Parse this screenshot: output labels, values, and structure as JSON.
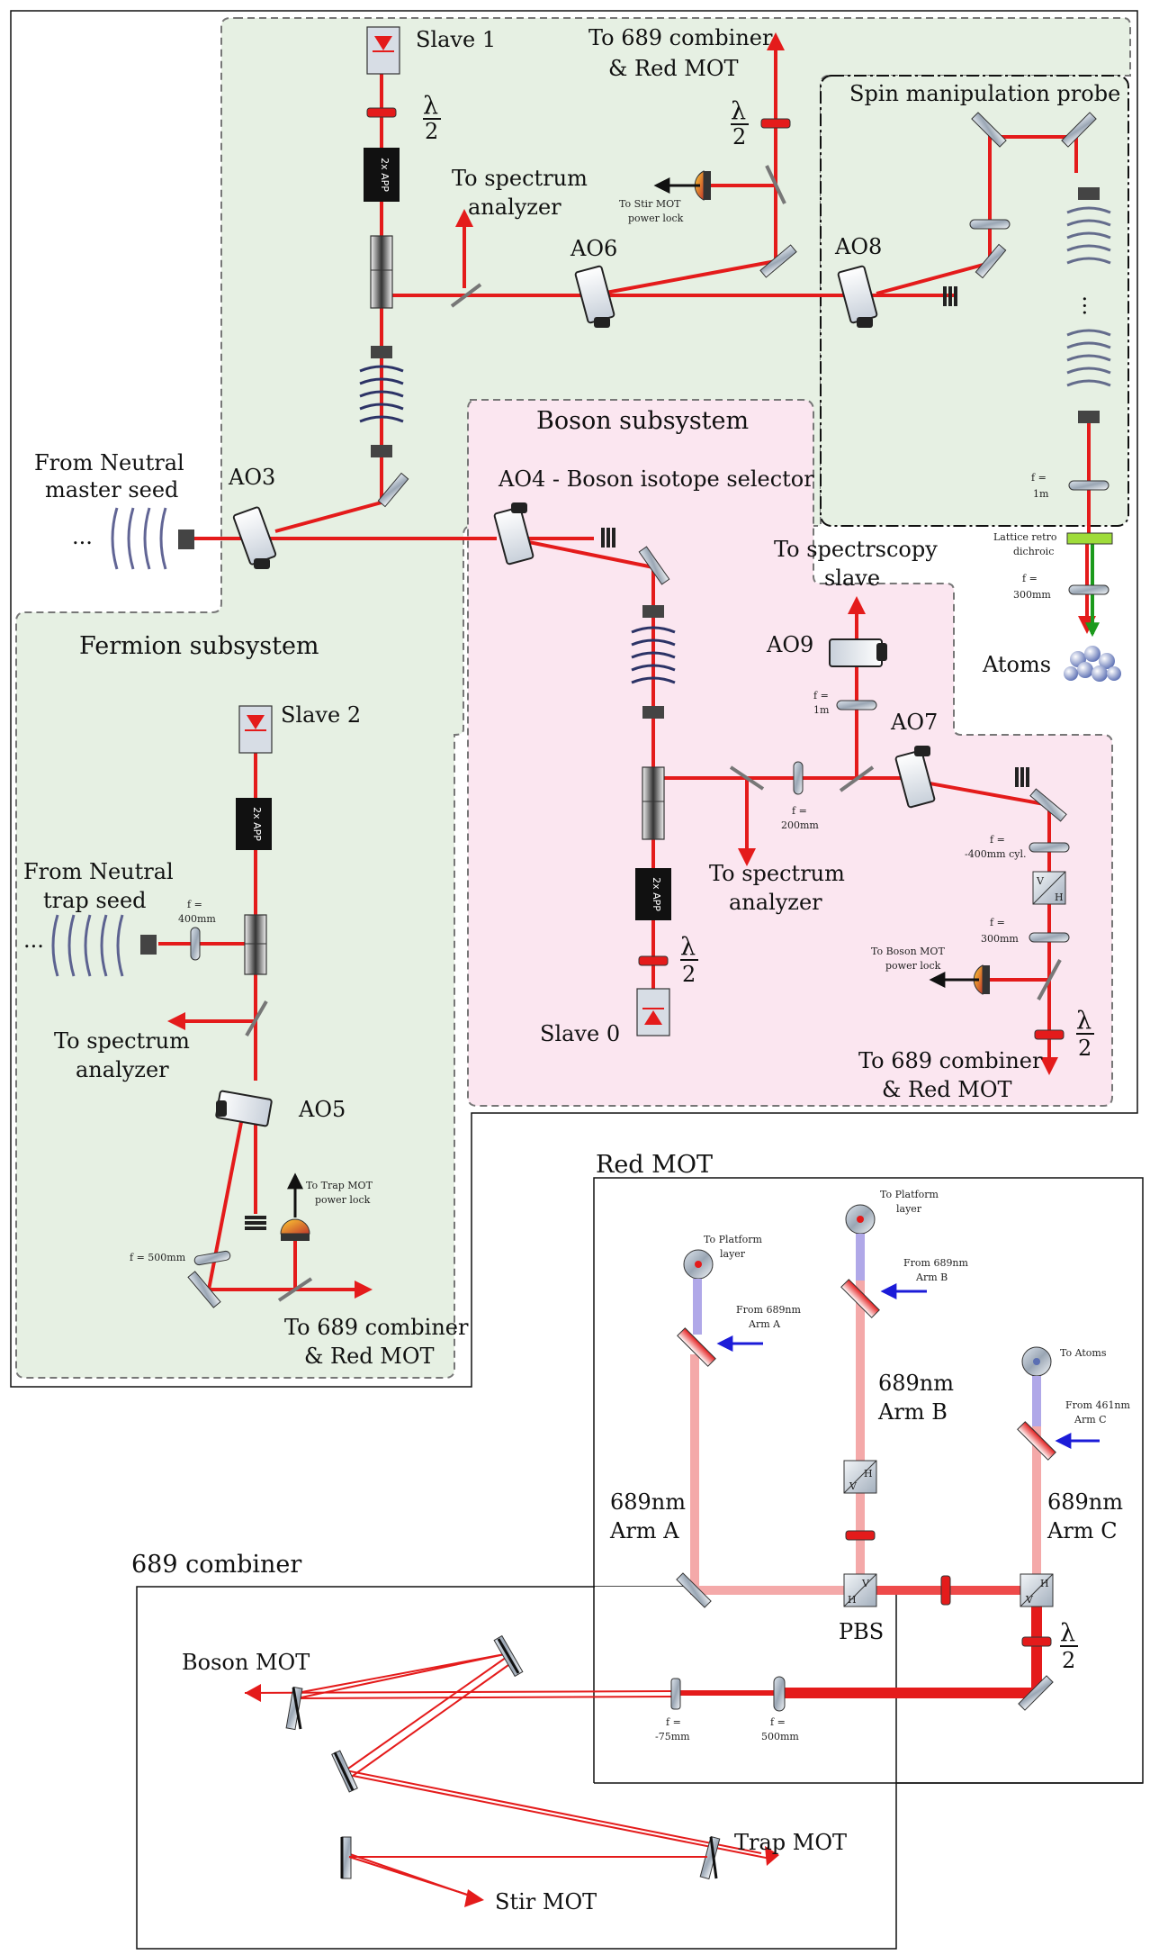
{
  "colors": {
    "beam": "#e41b1b",
    "fermion_bg": "#e6f0e3",
    "boson_bg": "#fbe6f0",
    "blue_beam": "#1b1bd8",
    "green_beam": "#1c9a1c",
    "pale_beam": "#f4a9a9"
  },
  "regions": {
    "fermion": "Fermion subsystem",
    "boson": "Boson subsystem",
    "spin": "Spin manipulation probe",
    "red_mot": "Red MOT",
    "combiner": "689 combiner"
  },
  "labels": {
    "slave1": "Slave 1",
    "slave2": "Slave 2",
    "slave0": "Slave 0",
    "to689_top_a": "To 689 combiner",
    "to689_top_b": "& Red MOT",
    "spec_top_a": "To spectrum",
    "spec_top_b": "analyzer",
    "stir_lock_a": "To Stir MOT",
    "stir_lock_b": "power lock",
    "ao6": "AO6",
    "ao8": "AO8",
    "ao3": "AO3",
    "ao4": "AO4 - Boson isotope selector",
    "ao9": "AO9",
    "ao7": "AO7",
    "ao5": "AO5",
    "master_a": "From Neutral",
    "master_b": "master seed",
    "trap_a": "From Neutral",
    "trap_b": "trap seed",
    "ellipsis": "...",
    "app": "2x APP",
    "lambda": "λ",
    "two": "2",
    "spectro_a": "To spectrscopy",
    "spectro_b": "slave",
    "f1m_a": "f =",
    "f1m_b": "1m",
    "f200_a": "f =",
    "f200_b": "200mm",
    "f400_a": "f =",
    "f400_b": "400mm",
    "f400cyl_a": "f =",
    "f400cyl_b": "-400mm cyl.",
    "f300_a": "f =",
    "f300_b": "300mm",
    "f1m_spin_a": "f =",
    "f1m_spin_b": "1m",
    "f300_spin_a": "f =",
    "f300_spin_b": "300mm",
    "lattice_a": "Lattice retro",
    "lattice_b": "dichroic",
    "atoms": "Atoms",
    "spec_mid_a": "To spectrum",
    "spec_mid_b": "analyzer",
    "boson_lock_a": "To Boson MOT",
    "boson_lock_b": "power lock",
    "to689_mid_a": "To 689 combiner",
    "to689_mid_b": "& Red MOT",
    "spec_left_a": "To spectrum",
    "spec_left_b": "analyzer",
    "trap_lock_a": "To Trap MOT",
    "trap_lock_b": "power lock",
    "f500": "f = 500mm",
    "to689_low_a": "To 689 combiner",
    "to689_low_b": "& Red MOT",
    "plat_a_a": "To Platform",
    "plat_a_b": "layer",
    "plat_b_a": "To Platform",
    "plat_b_b": "layer",
    "to_atoms": "To Atoms",
    "from_arm_a_a": "From 689nm",
    "from_arm_a_b": "Arm A",
    "from_arm_b_a": "From 689nm",
    "from_arm_b_b": "Arm B",
    "from_arm_c_a": "From 461nm",
    "from_arm_c_b": "Arm C",
    "arm_a_a": "689nm",
    "arm_a_b": "Arm A",
    "arm_b_a": "689nm",
    "arm_b_b": "Arm B",
    "arm_c_a": "689nm",
    "arm_c_b": "Arm C",
    "pbs": "PBS",
    "f_neg75_a": "f =",
    "f_neg75_b": "-75mm",
    "f_500_a": "f =",
    "f_500_b": "500mm",
    "boson_mot": "Boson MOT",
    "trap_mot": "Trap MOT",
    "stir_mot": "Stir MOT",
    "pol_v": "V",
    "pol_h": "H"
  }
}
